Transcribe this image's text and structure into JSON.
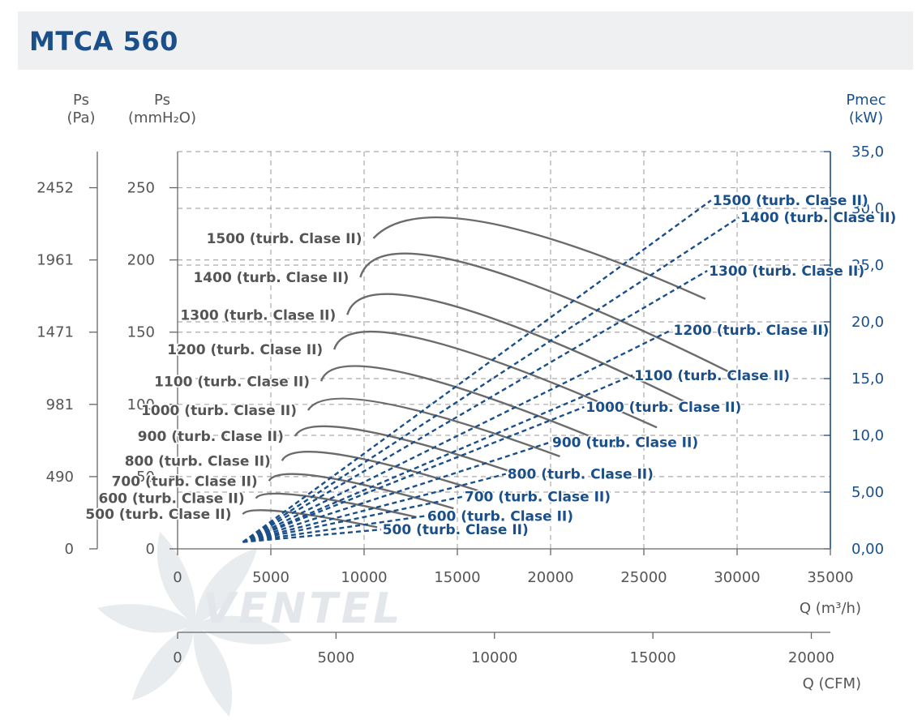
{
  "title": "MTCA 560",
  "watermark": "VENTEL",
  "colors": {
    "pressure_curve": "#6b6b6b",
    "power_curve": "#1a4f8a",
    "title": "#1a4f8a",
    "grid": "#aaaaaa"
  },
  "chart_data": {
    "type": "line",
    "title": "MTCA 560",
    "grid": true,
    "axes": {
      "x_main": {
        "label": "Q (m³/h)",
        "range": [
          0,
          35000
        ],
        "ticks": [
          0,
          5000,
          10000,
          15000,
          20000,
          25000,
          30000,
          35000
        ]
      },
      "x_secondary": {
        "label": "Q (CFM)",
        "range": [
          0,
          20601
        ],
        "ticks": [
          0,
          5000,
          10000,
          15000,
          20000
        ]
      },
      "y_left_pa": {
        "label_top": "Ps",
        "label_unit": "(Pa)",
        "ticks": [
          0,
          490,
          981,
          1471,
          1961,
          2452
        ]
      },
      "y_left_mmh2o": {
        "label_top": "Ps",
        "label_unit": "(mmH₂O)",
        "range": [
          0,
          275
        ],
        "ticks": [
          0,
          50,
          100,
          150,
          200,
          250
        ]
      },
      "y_right_kw": {
        "label_top": "Pmec",
        "label_unit": "(kW)",
        "range": [
          0,
          35
        ],
        "ticks": [
          "0,00",
          "5,00",
          "10,0",
          "15,0",
          "20,0",
          "25,0",
          "30,0",
          "35,0"
        ],
        "tick_values": [
          0,
          5,
          10,
          15,
          20,
          25,
          30,
          35
        ]
      }
    },
    "pressure_curves": [
      {
        "name": "1500 (turb. Clase II)",
        "q": [
          10500,
          16500,
          28300
        ],
        "ps": [
          215,
          226,
          173
        ]
      },
      {
        "name": "1400 (turb. Clase II)",
        "q": [
          9800,
          15400,
          29800
        ],
        "ps": [
          188,
          198,
          121
        ]
      },
      {
        "name": "1300 (turb. Clase II)",
        "q": [
          9100,
          14300,
          27800
        ],
        "ps": [
          162,
          170,
          98
        ]
      },
      {
        "name": "1200 (turb. Clase II)",
        "q": [
          8400,
          13200,
          25700
        ],
        "ps": [
          138,
          145,
          84
        ]
      },
      {
        "name": "1100 (turb. Clase II)",
        "q": [
          7700,
          12100,
          23600
        ],
        "ps": [
          116,
          122,
          70
        ]
      },
      {
        "name": "1000 (turb. Clase II)",
        "q": [
          7000,
          11000,
          20500
        ],
        "ps": [
          96,
          101,
          64
        ]
      },
      {
        "name": "900 (turb. Clase II)",
        "q": [
          6300,
          9900,
          18900
        ],
        "ps": [
          78,
          82,
          49
        ]
      },
      {
        "name": "800 (turb. Clase II)",
        "q": [
          5600,
          8800,
          16900
        ],
        "ps": [
          61,
          65,
          37
        ]
      },
      {
        "name": "700 (turb. Clase II)",
        "q": [
          4900,
          7700,
          14800
        ],
        "ps": [
          47,
          50,
          28
        ]
      },
      {
        "name": "600 (turb. Clase II)",
        "q": [
          4200,
          6600,
          12800
        ],
        "ps": [
          35,
          37,
          22
        ]
      },
      {
        "name": "500 (turb. Clase II)",
        "q": [
          3500,
          5500,
          10700
        ],
        "ps": [
          24,
          26,
          15
        ]
      }
    ],
    "power_curves": [
      {
        "name": "1500 (turb. Clase II)",
        "q": [
          3500,
          28600
        ],
        "kw": [
          0.6,
          30.7
        ]
      },
      {
        "name": "1400 (turb. Clase II)",
        "q": [
          3500,
          30100
        ],
        "kw": [
          0.6,
          29.2
        ]
      },
      {
        "name": "1300 (turb. Clase II)",
        "q": [
          3500,
          28400
        ],
        "kw": [
          0.6,
          24.5
        ]
      },
      {
        "name": "1200 (turb. Clase II)",
        "q": [
          3500,
          26500
        ],
        "kw": [
          0.6,
          19.3
        ]
      },
      {
        "name": "1100 (turb. Clase II)",
        "q": [
          3500,
          24400
        ],
        "kw": [
          0.6,
          15.3
        ]
      },
      {
        "name": "1000 (turb. Clase II)",
        "q": [
          3500,
          21800
        ],
        "kw": [
          0.6,
          12.5
        ]
      },
      {
        "name": "900 (turb. Clase II)",
        "q": [
          3500,
          20000
        ],
        "kw": [
          0.6,
          9.4
        ]
      },
      {
        "name": "800 (turb. Clase II)",
        "q": [
          3500,
          17600
        ],
        "kw": [
          0.6,
          6.6
        ]
      },
      {
        "name": "700 (turb. Clase II)",
        "q": [
          3500,
          15300
        ],
        "kw": [
          0.6,
          4.6
        ]
      },
      {
        "name": "600 (turb. Clase II)",
        "q": [
          3500,
          13300
        ],
        "kw": [
          0.6,
          2.9
        ]
      },
      {
        "name": "500 (turb. Clase II)",
        "q": [
          3500,
          10900
        ],
        "kw": [
          0.6,
          1.7
        ]
      }
    ]
  }
}
